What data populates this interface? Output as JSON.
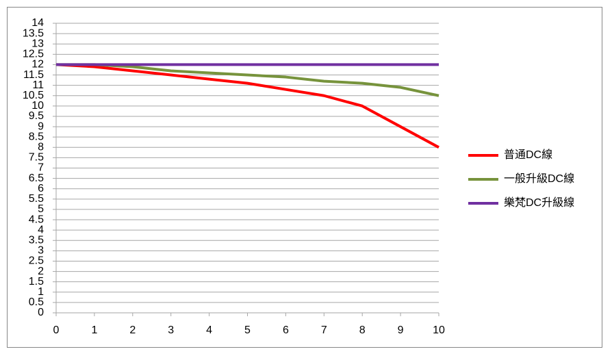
{
  "chart_data": {
    "type": "line",
    "x": [
      0,
      1,
      2,
      3,
      4,
      5,
      6,
      7,
      8,
      9,
      10
    ],
    "series": [
      {
        "name": "普通DC線",
        "color": "#ff0000",
        "values": [
          12,
          11.9,
          11.7,
          11.5,
          11.3,
          11.1,
          10.8,
          10.5,
          10.0,
          9.0,
          8.0
        ]
      },
      {
        "name": "一般升級DC線",
        "color": "#77933c",
        "values": [
          12,
          12,
          11.9,
          11.7,
          11.6,
          11.5,
          11.4,
          11.2,
          11.1,
          10.9,
          10.5
        ]
      },
      {
        "name": "樂梵DC升級線",
        "color": "#7030a0",
        "values": [
          12,
          12,
          12,
          12,
          12,
          12,
          12,
          12,
          12,
          12,
          12
        ]
      }
    ],
    "xlim": [
      0,
      10
    ],
    "xticks": [
      0,
      1,
      2,
      3,
      4,
      5,
      6,
      7,
      8,
      9,
      10
    ],
    "ylim": [
      0,
      14
    ],
    "yticks": [
      0,
      0.5,
      1,
      1.5,
      2,
      2.5,
      3,
      3.5,
      4,
      4.5,
      5,
      5.5,
      6,
      6.5,
      7,
      7.5,
      8,
      8.5,
      9,
      9.5,
      10,
      10.5,
      11,
      11.5,
      12,
      12.5,
      13,
      13.5,
      14
    ],
    "grid": true,
    "legend": "right"
  }
}
